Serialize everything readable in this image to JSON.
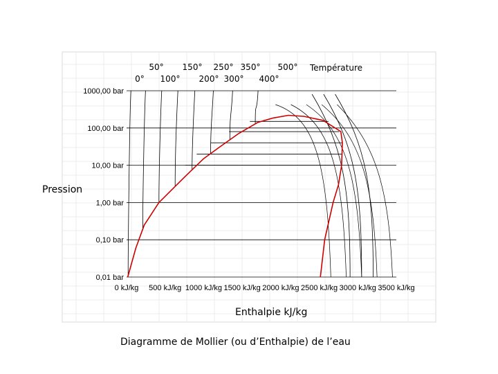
{
  "chart_data": {
    "type": "line",
    "title": "Diagramme de Mollier (ou d’Enthalpie) de l’eau",
    "xlabel": "Enthalpie kJ/kg",
    "ylabel": "Pression",
    "temperature_title": "Température",
    "x_scale": "linear",
    "y_scale": "log",
    "xlim": [
      0,
      3500
    ],
    "ylim": [
      0.01,
      1000
    ],
    "grid": true,
    "x_ticks": [
      {
        "value": 0,
        "label": "0 kJ/kg"
      },
      {
        "value": 500,
        "label": "500 kJ/kg"
      },
      {
        "value": 1000,
        "label": "1000 kJ/kg"
      },
      {
        "value": 1500,
        "label": "1500 kJ/kg"
      },
      {
        "value": 2000,
        "label": "2000 kJ/kg"
      },
      {
        "value": 2500,
        "label": "2500 kJ/kg"
      },
      {
        "value": 3000,
        "label": "3000 kJ/kg"
      },
      {
        "value": 3500,
        "label": "3500 kJ/kg"
      }
    ],
    "y_ticks": [
      {
        "value": 1000,
        "label": "1000,00 bar"
      },
      {
        "value": 100,
        "label": "100,00 bar"
      },
      {
        "value": 10,
        "label": "10,00 bar"
      },
      {
        "value": 1,
        "label": "1,00 bar"
      },
      {
        "value": 0.1,
        "label": "0,10 bar"
      },
      {
        "value": 0.01,
        "label": "0,01 bar"
      }
    ],
    "temperature_labels": [
      {
        "label": "0°",
        "temp": 0
      },
      {
        "label": "50°",
        "temp": 50
      },
      {
        "label": "100°",
        "temp": 100
      },
      {
        "label": "150°",
        "temp": 150
      },
      {
        "label": "200°",
        "temp": 200
      },
      {
        "label": "250°",
        "temp": 250
      },
      {
        "label": "300°",
        "temp": 300
      },
      {
        "label": "350°",
        "temp": 350
      },
      {
        "label": "400°",
        "temp": 400
      },
      {
        "label": "500°",
        "temp": 500
      }
    ],
    "saturation_curve": {
      "color": "#cc0000",
      "liquid": [
        [
          15,
          0.01
        ],
        [
          120,
          0.06
        ],
        [
          230,
          0.25
        ],
        [
          420,
          1.0
        ],
        [
          760,
          5
        ],
        [
          1000,
          15
        ],
        [
          1200,
          30
        ],
        [
          1450,
          70
        ],
        [
          1700,
          140
        ],
        [
          1900,
          185
        ],
        [
          2100,
          219
        ]
      ],
      "vapor": [
        [
          2100,
          219
        ],
        [
          2300,
          205
        ],
        [
          2550,
          160
        ],
        [
          2780,
          80
        ],
        [
          2800,
          40
        ],
        [
          2790,
          10
        ],
        [
          2750,
          3
        ],
        [
          2680,
          1
        ],
        [
          2570,
          0.1
        ],
        [
          2515,
          0.01
        ]
      ]
    },
    "isobars_in_dome": [
      {
        "p": 150,
        "h1": 1600,
        "h2": 2620
      },
      {
        "p": 80,
        "h1": 1330,
        "h2": 2760
      },
      {
        "p": 40,
        "h1": 1090,
        "h2": 2800
      },
      {
        "p": 20,
        "h1": 910,
        "h2": 2800
      },
      {
        "p": 10,
        "h1": 760,
        "h2": 2780
      }
    ],
    "isotherms": [
      {
        "temp": 0,
        "h_liquid": 20
      },
      {
        "temp": 50,
        "h_liquid": 210
      },
      {
        "temp": 100,
        "h_liquid": 420
      },
      {
        "temp": 150,
        "h_liquid": 630
      },
      {
        "temp": 200,
        "h_liquid": 850
      },
      {
        "temp": 250,
        "h_liquid": 1090
      },
      {
        "temp": 300,
        "h_liquid": 1340
      },
      {
        "temp": 350,
        "h_liquid": 1670
      },
      {
        "temp": 400,
        "h_vapor": 2900
      },
      {
        "temp": 450,
        "h_vapor": 3050
      },
      {
        "temp": 500,
        "h_vapor": 3200
      }
    ]
  }
}
